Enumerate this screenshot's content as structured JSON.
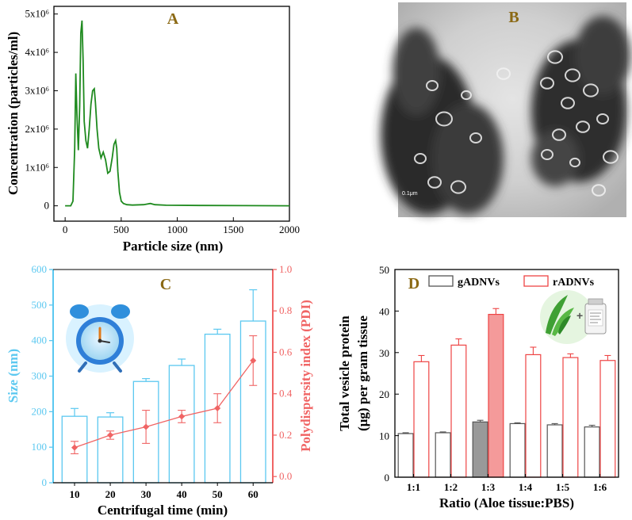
{
  "panels": {
    "A": "A",
    "B": "B",
    "C": "C",
    "D": "D"
  },
  "scale_bar_label": "0.1μm",
  "colors": {
    "nta_curve": "#1e8a1e",
    "size_axis": "#5bc8f0",
    "pdi_axis": "#f06464",
    "bar_outline_black": "#555555",
    "bar_outline_red": "#ee4444",
    "bar_fill_gray": "#999999",
    "bar_fill_red": "#f49a9a",
    "panel_letter": "#8B6914"
  },
  "chart_data": [
    {
      "panel": "A",
      "type": "line",
      "xlabel": "Particle size (nm)",
      "ylabel": "Concentration (particles/ml)",
      "xlim": [
        -100,
        2000
      ],
      "ylim": [
        -400000,
        5200000
      ],
      "xticks": [
        0,
        500,
        1000,
        1500,
        2000
      ],
      "xtick_labels": [
        "0",
        "500",
        "1000",
        "1500",
        "2000"
      ],
      "yticks": [
        0,
        1000000,
        2000000,
        3000000,
        4000000,
        5000000
      ],
      "ytick_labels": [
        "0",
        "1x10⁶",
        "2x10⁶",
        "3x10⁶",
        "4x10⁶",
        "5x10⁶"
      ],
      "series": [
        {
          "x": [
            0,
            50,
            70,
            85,
            95,
            105,
            118,
            130,
            140,
            150,
            160,
            170,
            185,
            200,
            215,
            230,
            245,
            260,
            270,
            285,
            300,
            320,
            340,
            360,
            380,
            400,
            420,
            435,
            450,
            460,
            470,
            485,
            500,
            520,
            550,
            600,
            700,
            760,
            800,
            900,
            1200,
            1600,
            2000
          ],
          "y": [
            0,
            0,
            120000,
            1500000,
            3450000,
            2400000,
            1450000,
            2600000,
            4500000,
            4830000,
            3800000,
            2200000,
            1700000,
            1500000,
            2000000,
            2650000,
            3000000,
            3050000,
            2700000,
            2000000,
            1500000,
            1250000,
            1400000,
            1200000,
            850000,
            900000,
            1250000,
            1600000,
            1700000,
            1500000,
            900000,
            350000,
            120000,
            60000,
            30000,
            20000,
            30000,
            60000,
            30000,
            15000,
            10000,
            5000,
            0
          ]
        }
      ]
    },
    {
      "panel": "C",
      "type": "bar",
      "xlabel": "Centrifugal time (min)",
      "ylabel": "Size (nm)",
      "y2label": "Polydispersity index (PDI)",
      "categories": [
        "10",
        "20",
        "30",
        "40",
        "50",
        "60"
      ],
      "ylim": [
        0,
        600
      ],
      "yticks": [
        0,
        100,
        200,
        300,
        400,
        500,
        600
      ],
      "y2lim": [
        -0.03,
        1.0
      ],
      "y2ticks": [
        0.0,
        0.2,
        0.4,
        0.6,
        0.8,
        1.0
      ],
      "y2tick_labels": [
        "0.0",
        "0.2",
        "0.4",
        "0.6",
        "0.8",
        "1.0"
      ],
      "series": [
        {
          "axis": "left",
          "kind": "bar",
          "values": [
            187,
            185,
            285,
            330,
            418,
            455
          ],
          "errors": [
            22,
            12,
            8,
            18,
            14,
            88
          ]
        },
        {
          "axis": "right",
          "kind": "line",
          "values": [
            0.14,
            0.2,
            0.24,
            0.29,
            0.33,
            0.56
          ],
          "errors": [
            0.03,
            0.02,
            0.08,
            0.03,
            0.07,
            0.12
          ]
        }
      ]
    },
    {
      "panel": "D",
      "type": "bar",
      "xlabel": "Ratio (Aloe tissue:PBS)",
      "ylabel": "Total vesicle protein (μg) per gram tissue",
      "ylabel_lines": [
        "Total vesicle protein",
        "(μg) per gram tissue"
      ],
      "categories": [
        "1:1",
        "1:2",
        "1:3",
        "1:4",
        "1:5",
        "1:6"
      ],
      "ylim": [
        0,
        50
      ],
      "yticks": [
        0,
        10,
        20,
        30,
        40,
        50
      ],
      "legend": [
        "gADNVs",
        "rADNVs"
      ],
      "legend_position": "top",
      "series": [
        {
          "name": "gADNVs",
          "values": [
            10.5,
            10.7,
            13.3,
            12.9,
            12.6,
            12.1
          ],
          "errors": [
            0.2,
            0.2,
            0.4,
            0.2,
            0.3,
            0.4
          ],
          "highlight_index": 2
        },
        {
          "name": "rADNVs",
          "values": [
            27.8,
            31.8,
            39.2,
            29.5,
            28.8,
            28.1
          ],
          "errors": [
            1.5,
            1.5,
            1.4,
            1.8,
            0.9,
            1.2
          ],
          "highlight_index": 2
        }
      ]
    }
  ]
}
